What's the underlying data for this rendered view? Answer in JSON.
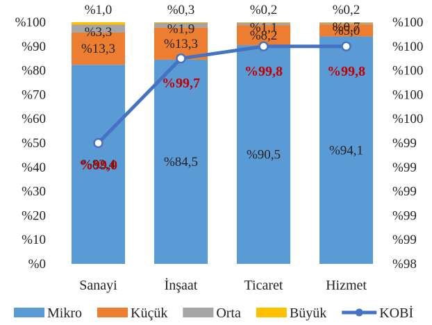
{
  "chart_data": {
    "type": "bar",
    "stacked": true,
    "categories": [
      "Sanayi",
      "İnşaat",
      "Ticaret",
      "Hizmet"
    ],
    "series": [
      {
        "name": "Mikro",
        "values": [
          82.4,
          84.5,
          90.5,
          94.1
        ],
        "labels": [
          "%82,4",
          "%84,5",
          "%90,5",
          "%94,1"
        ],
        "color": "#5b9bd5"
      },
      {
        "name": "Küçük",
        "values": [
          13.3,
          13.3,
          8.2,
          5.0
        ],
        "labels": [
          "%13,3",
          "%13,3",
          "%8,2",
          "%5,0"
        ],
        "color": "#ed7d31"
      },
      {
        "name": "Orta",
        "values": [
          3.3,
          1.9,
          1.1,
          0.7
        ],
        "labels": [
          "%3,3",
          "%1,9",
          "%1,1",
          "%0,7"
        ],
        "color": "#a5a5a5"
      },
      {
        "name": "Büyük",
        "values": [
          1.0,
          0.3,
          0.2,
          0.2
        ],
        "labels": [
          "%1,0",
          "%0,3",
          "%0,2",
          "%0,2"
        ],
        "color": "#ffc000"
      }
    ],
    "line_series": {
      "name": "KOBİ",
      "axis": "secondary",
      "values": [
        99.0,
        99.7,
        99.8,
        99.8
      ],
      "labels": [
        "%99,0",
        "%99,7",
        "%99,8",
        "%99,8"
      ],
      "color": "#4472c4",
      "label_color": "#c00000"
    },
    "y_primary": {
      "range": [
        0,
        100
      ],
      "ticks": [
        "%0",
        "%10",
        "%20",
        "%30",
        "%40",
        "%50",
        "%60",
        "%70",
        "%80",
        "%90",
        "%100"
      ]
    },
    "y_secondary": {
      "range": [
        98,
        100
      ],
      "ticks": [
        "%98",
        "%99",
        "%99",
        "%99",
        "%99",
        "%99",
        "%100",
        "%100",
        "%100",
        "%100",
        "%100"
      ]
    },
    "legend_position": "bottom",
    "grid": false
  }
}
